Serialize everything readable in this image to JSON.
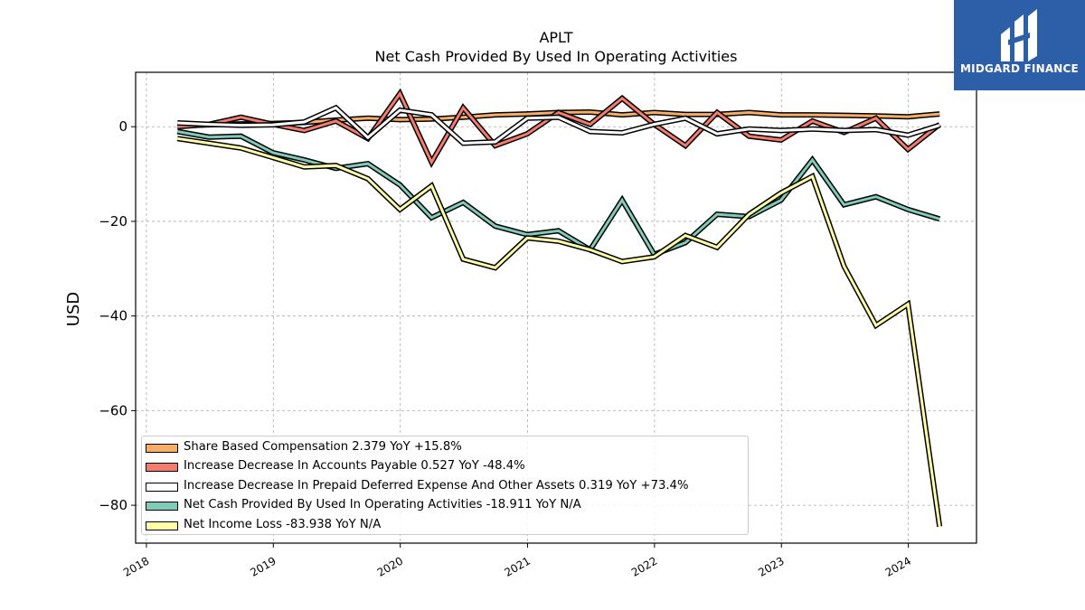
{
  "logo": {
    "text": "MIDGARD FINANCE",
    "icon": "midgard-logo-icon",
    "color": "#2d5fa8"
  },
  "chart_data": {
    "type": "line",
    "title": "APLT",
    "subtitle": "Net Cash Provided By Used In Operating Activities",
    "ylabel": "USD",
    "xlabel": "",
    "ylim": [
      -88,
      11.5
    ],
    "xlim": [
      "2017-12-01",
      "2024-07-15"
    ],
    "yticks": [
      0,
      -20,
      -40,
      -60,
      -80
    ],
    "ytick_labels": [
      "0",
      "−20",
      "−40",
      "−60",
      "−80"
    ],
    "xticks": [
      "2018",
      "2019",
      "2020",
      "2021",
      "2022",
      "2023",
      "2024"
    ],
    "grid": true,
    "legend_position": "lower-left",
    "x": [
      "2018-03-31",
      "2018-06-30",
      "2018-09-30",
      "2018-12-31",
      "2019-03-31",
      "2019-06-30",
      "2019-09-30",
      "2019-12-31",
      "2020-03-31",
      "2020-06-30",
      "2020-09-30",
      "2020-12-31",
      "2021-03-31",
      "2021-06-30",
      "2021-09-30",
      "2021-12-31",
      "2022-03-31",
      "2022-06-30",
      "2022-09-30",
      "2022-12-31",
      "2023-03-31",
      "2023-06-30",
      "2023-09-30",
      "2023-12-31",
      "2024-03-31"
    ],
    "series": [
      {
        "name": "Share Based Compensation",
        "legend_label": "Share Based Compensation  2.379 YoY +15.8%",
        "color": "#f6ad66",
        "values": [
          0.2,
          0.4,
          0.6,
          0.7,
          0.9,
          1.4,
          1.8,
          1.5,
          1.6,
          2.0,
          2.5,
          2.7,
          3.0,
          3.1,
          2.5,
          3.0,
          2.6,
          2.6,
          3.0,
          2.5,
          2.5,
          2.4,
          2.3,
          2.1,
          2.7
        ]
      },
      {
        "name": "Increase Decrease In Accounts Payable",
        "legend_label": "Increase Decrease In Accounts Payable  0.527 YoY -48.4%",
        "color": "#f47c6c",
        "values": [
          0.0,
          0.5,
          2.0,
          0.5,
          -0.8,
          1.2,
          -2.5,
          7.0,
          -7.5,
          4.0,
          -4.0,
          -1.5,
          3.0,
          0.5,
          6.0,
          0.5,
          -4.0,
          3.0,
          -2.0,
          -2.8,
          1.2,
          -1.2,
          1.8,
          -4.8,
          0.5
        ]
      },
      {
        "name": "Increase Decrease In Prepaid Deferred Expense And Other Assets",
        "legend_label": "Increase Decrease In Prepaid Deferred Expense And Other Assets  0.319 YoY +73.4%",
        "color": "#ffffff",
        "values": [
          0.8,
          0.5,
          0.3,
          0.4,
          1.0,
          4.0,
          -2.3,
          3.5,
          2.5,
          -3.5,
          -3.2,
          1.8,
          2.0,
          -1.0,
          -1.3,
          0.5,
          1.8,
          -1.5,
          -0.5,
          -0.8,
          -0.5,
          -0.8,
          -0.6,
          -1.8,
          0.3
        ]
      },
      {
        "name": "Net Cash Provided By Used In Operating Activities",
        "legend_label": "Net Cash Provided By Used In Operating Activities  -18.911 YoY N/A",
        "color": "#7fcbb8",
        "values": [
          -1.0,
          -2.2,
          -2.0,
          -5.5,
          -7.0,
          -8.8,
          -7.8,
          -12.3,
          -19.2,
          -16.0,
          -21.0,
          -22.8,
          -22.0,
          -26.0,
          -15.5,
          -27.0,
          -24.5,
          -18.5,
          -19.0,
          -15.5,
          -7.0,
          -16.5,
          -14.8,
          -17.5,
          -19.5
        ]
      },
      {
        "name": "Net Income Loss",
        "legend_label": "Net Income Loss  -83.938 YoY N/A",
        "color": "#ffffaa",
        "values": [
          -2.5,
          -3.5,
          -4.5,
          -6.5,
          -8.5,
          -8.2,
          -11.0,
          -17.5,
          -12.5,
          -28.0,
          -29.8,
          -23.5,
          -24.2,
          -26.0,
          -28.5,
          -27.5,
          -23.0,
          -25.5,
          -18.5,
          -14.0,
          -10.5,
          -29.5,
          -42.0,
          -37.5,
          -84.5
        ]
      }
    ]
  }
}
